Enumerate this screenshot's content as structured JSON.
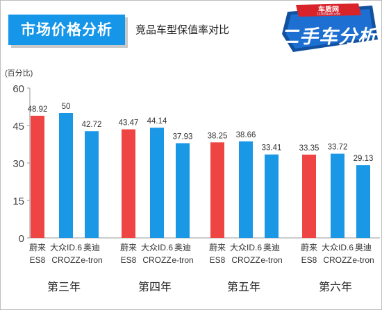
{
  "header": {
    "tag_title": "市场价格分析",
    "subtitle": "竞品车型保值率对比",
    "logo_site": "车质网",
    "logo_url": "12365auto.com",
    "logo_main": "二手车分析"
  },
  "colors": {
    "tag_background": "#1696e8",
    "nio_bar": "#ef4444",
    "competitor_bar": "#1a98e6",
    "logo_red": "#d8232a",
    "logo_blue": "#1250a0"
  },
  "chart_data": {
    "type": "bar",
    "title": "",
    "ylabel": "(百分比)",
    "xlabel": "",
    "ylim": [
      0,
      60
    ],
    "yticks": [
      0,
      15,
      30,
      45,
      60
    ],
    "grid": false,
    "legend": "none",
    "groups": [
      {
        "name": "第三年",
        "bars": [
          {
            "label_line1": "蔚来",
            "label_line2": "ES8",
            "value": 48.92,
            "value_label": "48.92",
            "color": "#ef4444"
          },
          {
            "label_line1": "大众ID.6",
            "label_line2": "CROZZ",
            "value": 50,
            "value_label": "50",
            "color": "#1a98e6"
          },
          {
            "label_line1": "奥迪",
            "label_line2": "e-tron",
            "value": 42.72,
            "value_label": "42.72",
            "color": "#1a98e6"
          }
        ]
      },
      {
        "name": "第四年",
        "bars": [
          {
            "label_line1": "蔚来",
            "label_line2": "ES8",
            "value": 43.47,
            "value_label": "43.47",
            "color": "#ef4444"
          },
          {
            "label_line1": "大众ID.6",
            "label_line2": "CROZZ",
            "value": 44.14,
            "value_label": "44.14",
            "color": "#1a98e6"
          },
          {
            "label_line1": "奥迪",
            "label_line2": "e-tron",
            "value": 37.93,
            "value_label": "37.93",
            "color": "#1a98e6"
          }
        ]
      },
      {
        "name": "第五年",
        "bars": [
          {
            "label_line1": "蔚来",
            "label_line2": "ES8",
            "value": 38.25,
            "value_label": "38.25",
            "color": "#ef4444"
          },
          {
            "label_line1": "大众ID.6",
            "label_line2": "CROZZ",
            "value": 38.66,
            "value_label": "38.66",
            "color": "#1a98e6"
          },
          {
            "label_line1": "奥迪",
            "label_line2": "e-tron",
            "value": 33.41,
            "value_label": "33.41",
            "color": "#1a98e6"
          }
        ]
      },
      {
        "name": "第六年",
        "bars": [
          {
            "label_line1": "蔚来",
            "label_line2": "ES8",
            "value": 33.35,
            "value_label": "33.35",
            "color": "#ef4444"
          },
          {
            "label_line1": "大众ID.6",
            "label_line2": "CROZZ",
            "value": 33.72,
            "value_label": "33.72",
            "color": "#1a98e6"
          },
          {
            "label_line1": "奥迪",
            "label_line2": "e-tron",
            "value": 29.13,
            "value_label": "29.13",
            "color": "#1a98e6"
          }
        ]
      }
    ]
  }
}
